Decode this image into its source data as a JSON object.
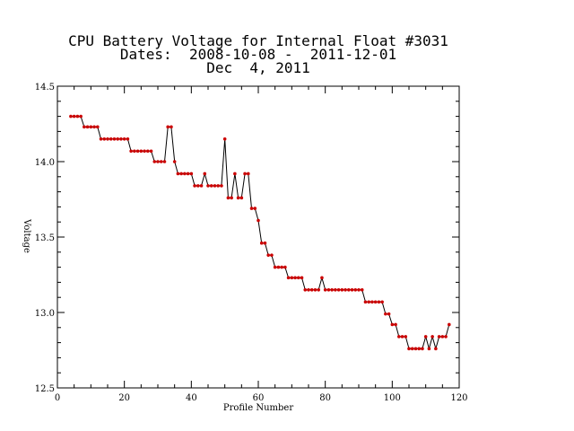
{
  "title": {
    "line1": "CPU Battery Voltage for Internal Float #3031",
    "line2": "Dates:  2008-10-08 -  2011-12-01",
    "line3": "Dec  4, 2011"
  },
  "colors": {
    "axis": "#000000",
    "line": "#000000",
    "marker": "#cc0000"
  },
  "chart_data": {
    "type": "line",
    "title": "CPU Battery Voltage for Internal Float #3031",
    "subtitle": "Dates:  2008-10-08 -  2011-12-01 / Dec  4, 2011",
    "xlabel": "Profile Number",
    "ylabel": "Voltage",
    "xlim": [
      0,
      120
    ],
    "ylim": [
      12.5,
      14.5
    ],
    "xticks": [
      "0",
      "20",
      "40",
      "60",
      "80",
      "100",
      "120"
    ],
    "yticks": [
      "12.5",
      "13.0",
      "13.5",
      "14.0",
      "14.5"
    ],
    "grid": false,
    "series": [
      {
        "x": [
          4,
          5,
          6,
          7,
          8,
          9,
          10,
          11,
          12,
          13,
          14,
          15,
          16,
          17,
          18,
          19,
          20,
          21,
          22,
          23,
          24,
          25,
          26,
          27,
          28,
          29,
          30,
          31,
          32,
          33,
          34,
          35,
          36,
          37,
          38,
          39,
          40,
          41,
          42,
          43,
          44,
          45,
          46,
          47,
          48,
          49,
          50,
          51,
          52,
          53,
          54,
          55,
          56,
          57,
          58,
          59,
          60,
          61,
          62,
          63,
          64,
          65,
          66,
          67,
          68,
          69,
          70,
          71,
          72,
          73,
          74,
          75,
          76,
          77,
          78,
          79,
          80,
          81,
          82,
          83,
          84,
          85,
          86,
          87,
          88,
          89,
          90,
          91,
          92,
          93,
          94,
          95,
          96,
          97,
          98,
          99,
          100,
          101,
          102,
          103,
          104,
          105,
          106,
          107,
          108,
          109,
          110,
          111,
          112,
          113,
          114,
          115,
          116,
          117
        ],
        "y": [
          14.3,
          14.3,
          14.3,
          14.3,
          14.23,
          14.23,
          14.23,
          14.23,
          14.23,
          14.15,
          14.15,
          14.15,
          14.15,
          14.15,
          14.15,
          14.15,
          14.15,
          14.15,
          14.07,
          14.07,
          14.07,
          14.07,
          14.07,
          14.07,
          14.07,
          14.0,
          14.0,
          14.0,
          14.0,
          14.23,
          14.23,
          14.0,
          13.92,
          13.92,
          13.92,
          13.92,
          13.92,
          13.84,
          13.84,
          13.84,
          13.92,
          13.84,
          13.84,
          13.84,
          13.84,
          13.84,
          14.15,
          13.76,
          13.76,
          13.92,
          13.76,
          13.76,
          13.92,
          13.92,
          13.69,
          13.69,
          13.61,
          13.46,
          13.46,
          13.38,
          13.38,
          13.3,
          13.3,
          13.3,
          13.3,
          13.23,
          13.23,
          13.23,
          13.23,
          13.23,
          13.15,
          13.15,
          13.15,
          13.15,
          13.15,
          13.23,
          13.15,
          13.15,
          13.15,
          13.15,
          13.15,
          13.15,
          13.15,
          13.15,
          13.15,
          13.15,
          13.15,
          13.15,
          13.07,
          13.07,
          13.07,
          13.07,
          13.07,
          13.07,
          12.99,
          12.99,
          12.92,
          12.92,
          12.84,
          12.84,
          12.84,
          12.76,
          12.76,
          12.76,
          12.76,
          12.76,
          12.84,
          12.76,
          12.84,
          12.76,
          12.84,
          12.84,
          12.84,
          12.92
        ]
      }
    ]
  }
}
